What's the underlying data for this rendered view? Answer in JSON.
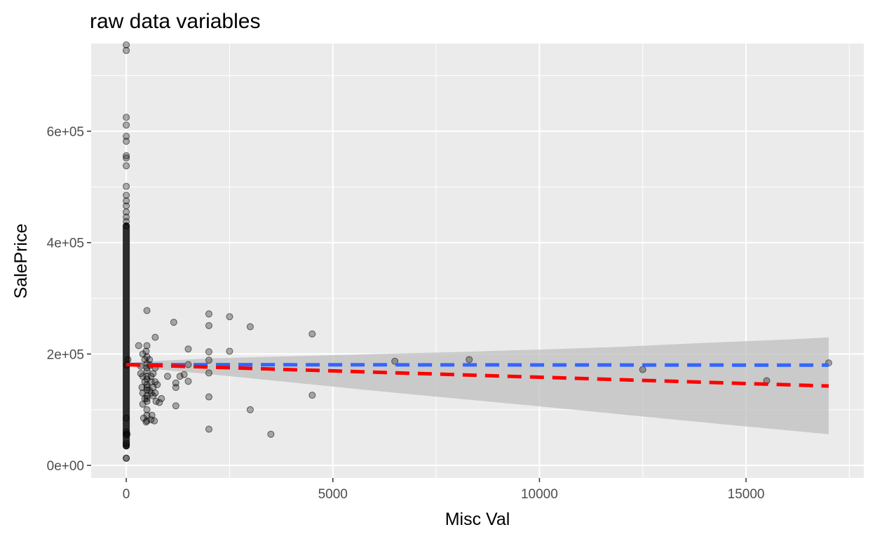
{
  "chart_data": {
    "type": "scatter",
    "title": "raw data variables",
    "xlabel": "Misc Val",
    "ylabel": "SalePrice",
    "xlim": [
      -850,
      17850
    ],
    "ylim": [
      -22500,
      757500
    ],
    "x_ticks": [
      {
        "value": 0,
        "label": "0"
      },
      {
        "value": 5000,
        "label": "5000"
      },
      {
        "value": 10000,
        "label": "10000"
      },
      {
        "value": 15000,
        "label": "15000"
      }
    ],
    "x_minor": [
      2500,
      7500,
      12500,
      17500
    ],
    "y_ticks": [
      {
        "value": 0,
        "label": "0e+00"
      },
      {
        "value": 200000,
        "label": "2e+05"
      },
      {
        "value": 400000,
        "label": "4e+05"
      },
      {
        "value": 600000,
        "label": "6e+05"
      }
    ],
    "y_minor": [
      100000,
      300000,
      500000,
      700000
    ],
    "grid": true,
    "colors": {
      "panel": "#ebebeb",
      "grid": "#ffffff",
      "points": "#000000",
      "ribbon": "#bdbdbd",
      "fit_line": "#3366ff",
      "reference_line": "#ff0000"
    },
    "zero_column": {
      "x": 0,
      "y_min": 34900,
      "y_max": 755000,
      "outliers": [
        745000,
        755000,
        625000,
        611000,
        591000,
        582000,
        556000,
        552000,
        538000,
        501000,
        485000,
        475000,
        466000,
        455000,
        446000,
        438000,
        430000
      ]
    },
    "points": [
      [
        0,
        12789
      ],
      [
        0,
        13100
      ],
      [
        0,
        35311
      ],
      [
        0,
        39300
      ],
      [
        0,
        55000
      ],
      [
        0,
        60000
      ],
      [
        0,
        85000
      ],
      [
        15,
        180000
      ],
      [
        20,
        56000
      ],
      [
        40,
        190000
      ],
      [
        300,
        215000
      ],
      [
        350,
        178000
      ],
      [
        350,
        165000
      ],
      [
        380,
        140000
      ],
      [
        400,
        200000
      ],
      [
        400,
        160000
      ],
      [
        400,
        130000
      ],
      [
        400,
        110000
      ],
      [
        420,
        85000
      ],
      [
        450,
        190000
      ],
      [
        450,
        150000
      ],
      [
        450,
        120000
      ],
      [
        480,
        205000
      ],
      [
        480,
        78000
      ],
      [
        500,
        278000
      ],
      [
        500,
        215000
      ],
      [
        500,
        195000
      ],
      [
        500,
        183000
      ],
      [
        500,
        175000
      ],
      [
        500,
        170000
      ],
      [
        500,
        160000
      ],
      [
        500,
        155000
      ],
      [
        500,
        145000
      ],
      [
        500,
        140000
      ],
      [
        500,
        135000
      ],
      [
        500,
        125000
      ],
      [
        500,
        120000
      ],
      [
        500,
        115000
      ],
      [
        500,
        100000
      ],
      [
        500,
        90000
      ],
      [
        500,
        80000
      ],
      [
        560,
        190000
      ],
      [
        560,
        135000
      ],
      [
        580,
        180000
      ],
      [
        600,
        160000
      ],
      [
        600,
        150000
      ],
      [
        600,
        130000
      ],
      [
        600,
        82000
      ],
      [
        620,
        90000
      ],
      [
        650,
        165000
      ],
      [
        650,
        140000
      ],
      [
        650,
        125000
      ],
      [
        680,
        80000
      ],
      [
        700,
        230000
      ],
      [
        700,
        175000
      ],
      [
        700,
        150000
      ],
      [
        700,
        130000
      ],
      [
        720,
        115000
      ],
      [
        750,
        145000
      ],
      [
        800,
        113000
      ],
      [
        850,
        120000
      ],
      [
        1000,
        160000
      ],
      [
        1150,
        257000
      ],
      [
        1200,
        148000
      ],
      [
        1200,
        140000
      ],
      [
        1200,
        107000
      ],
      [
        1300,
        160000
      ],
      [
        1400,
        163000
      ],
      [
        1500,
        209000
      ],
      [
        1500,
        181000
      ],
      [
        1500,
        151000
      ],
      [
        2000,
        272000
      ],
      [
        2000,
        251000
      ],
      [
        2000,
        204000
      ],
      [
        2000,
        189000
      ],
      [
        2000,
        166000
      ],
      [
        2000,
        123000
      ],
      [
        2000,
        65000
      ],
      [
        2500,
        267000
      ],
      [
        2500,
        205000
      ],
      [
        3000,
        249000
      ],
      [
        3000,
        100000
      ],
      [
        3500,
        56000
      ],
      [
        4500,
        236000
      ],
      [
        4500,
        126000
      ],
      [
        6500,
        187000
      ],
      [
        8300,
        190000
      ],
      [
        12500,
        172000
      ],
      [
        15500,
        152000
      ],
      [
        17000,
        184000
      ]
    ],
    "ribbon": {
      "x": [
        0,
        2000,
        4000,
        6000,
        8000,
        10000,
        12000,
        14000,
        16000,
        17000
      ],
      "lower": [
        177500,
        164000,
        149000,
        134000,
        120000,
        106000,
        91500,
        77000,
        63000,
        56000
      ],
      "upper": [
        185000,
        192000,
        196000,
        200000,
        203500,
        208000,
        213000,
        220000,
        226000,
        230000
      ]
    },
    "blue_line": {
      "x": [
        0,
        17000
      ],
      "y": [
        181000,
        180000
      ]
    },
    "red_line": {
      "x": [
        0,
        17000
      ],
      "y": [
        181000,
        142500
      ]
    }
  }
}
